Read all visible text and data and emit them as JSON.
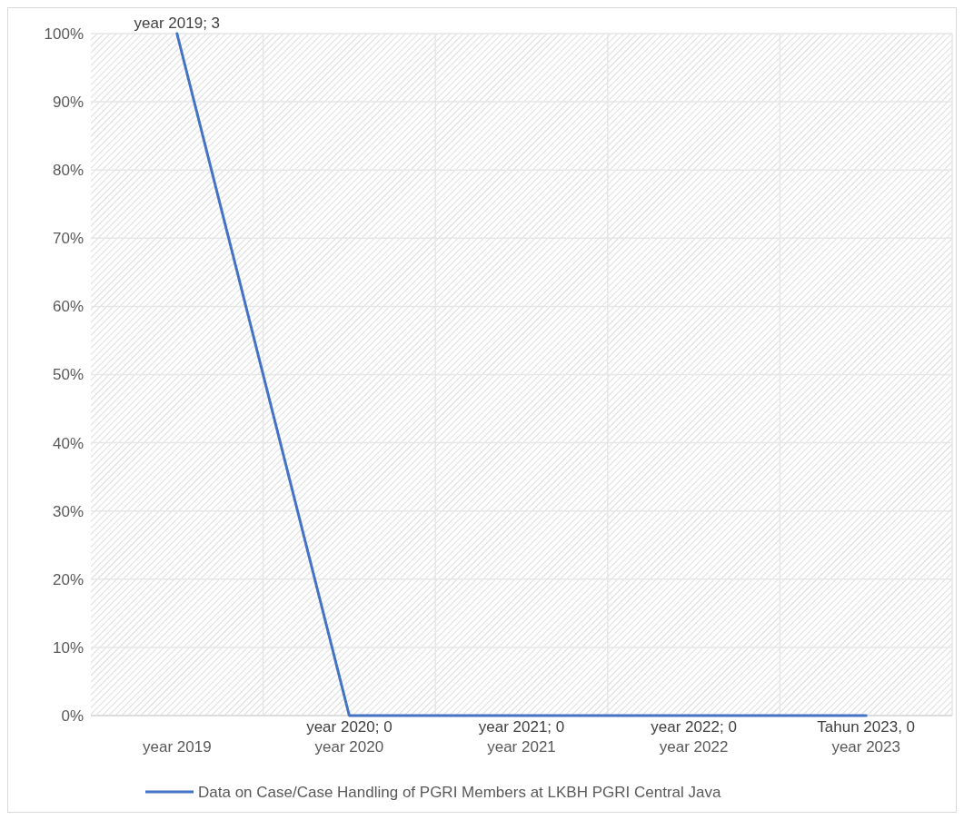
{
  "chart_data": {
    "type": "line",
    "categories": [
      "year 2019",
      "year 2020",
      "year 2021",
      "year 2022",
      "year 2023"
    ],
    "series": [
      {
        "name": "Data on Case/Case Handling of PGRI Members at LKBH PGRI Central Java",
        "color": "#4472c4",
        "values": [
          100,
          0,
          0,
          0,
          0
        ],
        "value_labels": [
          "year 2019; 3",
          "year 2020; 0",
          "year 2021; 0",
          "year 2022; 0",
          "Tahun 2023, 0"
        ]
      }
    ],
    "ylim": [
      0,
      100
    ],
    "yticks": [
      {
        "value": 0,
        "label": "0%"
      },
      {
        "value": 10,
        "label": "10%"
      },
      {
        "value": 20,
        "label": "20%"
      },
      {
        "value": 30,
        "label": "30%"
      },
      {
        "value": 40,
        "label": "40%"
      },
      {
        "value": 50,
        "label": "50%"
      },
      {
        "value": 60,
        "label": "60%"
      },
      {
        "value": 70,
        "label": "70%"
      },
      {
        "value": 80,
        "label": "80%"
      },
      {
        "value": 90,
        "label": "90%"
      },
      {
        "value": 100,
        "label": "100%"
      }
    ],
    "grid": true,
    "legend": "bottom",
    "marker": "none",
    "line_style": "solid"
  }
}
